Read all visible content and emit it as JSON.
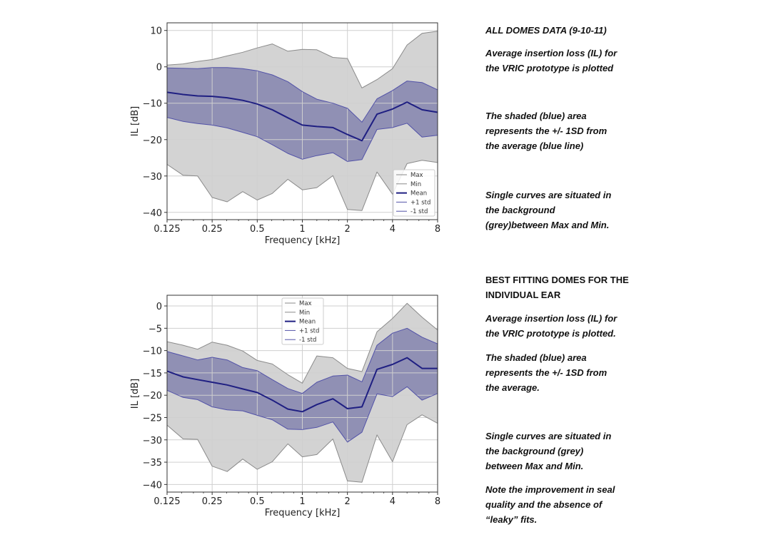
{
  "top_panel": {
    "heading": "ALL DOMES DATA (9-10-11)",
    "paragraphs": [
      [
        "Average insertion loss (IL) for",
        "the VRIC prototype is plotted"
      ],
      [
        "The shaded (blue) area",
        "represents the +/- 1SD from",
        "the average (blue line)"
      ],
      [
        "Single curves are situated in",
        "the background",
        "(grey)between Max and Min."
      ]
    ]
  },
  "bottom_panel": {
    "heading": [
      "BEST FITTING DOMES FOR THE",
      "INDIVIDUAL EAR"
    ],
    "paragraphs": [
      [
        "Average insertion loss (IL) for",
        "the VRIC prototype is plotted."
      ],
      [
        "The shaded (blue) area",
        "represents the +/- 1SD from",
        "the average."
      ],
      [
        "Single curves are situated in",
        "the background (grey)",
        "between Max and Min."
      ],
      [
        "Note the improvement in seal",
        "quality and the absence of",
        "“leaky” fits."
      ]
    ]
  },
  "colors": {
    "minmax_fill": "#d3d3d3",
    "minmax_line": "#8a8a8a",
    "std_fill": "#9090b4",
    "mean_line": "#1f1f82",
    "std_line": "#5252a8",
    "grid": "#cfcfcf"
  },
  "chart_data": [
    {
      "type": "area",
      "xlabel": "Frequency [kHz]",
      "ylabel": "IL [dB]",
      "xscale": "log2",
      "xlim": [
        0.125,
        8
      ],
      "ylim": [
        -42,
        12.1
      ],
      "xticks": [
        0.125,
        0.25,
        0.5,
        1,
        2,
        4,
        8
      ],
      "xtick_labels": [
        "0.125",
        "0.25",
        "0.5",
        "1",
        "2",
        "4",
        "8"
      ],
      "yticks": [
        10,
        0,
        -10,
        -20,
        -30,
        -40
      ],
      "ytick_labels": [
        "10",
        "0",
        "−10",
        "−20",
        "−30",
        "−40"
      ],
      "grid": true,
      "legend": "lower-right",
      "x": [
        0.125,
        0.16,
        0.2,
        0.25,
        0.315,
        0.4,
        0.5,
        0.63,
        0.8,
        1,
        1.25,
        1.6,
        2,
        2.5,
        3.15,
        4,
        5,
        6.3,
        8
      ],
      "series": [
        {
          "name": "Max",
          "values": [
            0.5,
            0.8,
            1.5,
            2,
            3,
            4,
            5.2,
            6.3,
            4.3,
            4.8,
            4.7,
            2.6,
            2.3,
            -5.8,
            -3.5,
            -0.5,
            6,
            9.2,
            9.8
          ]
        },
        {
          "name": "Min",
          "values": [
            -26.8,
            -29.8,
            -30,
            -35.9,
            -37.1,
            -34.3,
            -36.6,
            -34.8,
            -30.9,
            -33.8,
            -33.2,
            -29.9,
            -39.2,
            -39.5,
            -28.9,
            -35,
            -26.6,
            -25.7,
            -26.3
          ]
        },
        {
          "name": "Mean",
          "values": [
            -7,
            -7.6,
            -8,
            -8.1,
            -8.5,
            -9.2,
            -10.2,
            -11.8,
            -14,
            -16,
            -16.4,
            -16.7,
            -18.6,
            -20.3,
            -13,
            -11.6,
            -9.7,
            -11.8,
            -12.5
          ]
        },
        {
          "name": "+1 std",
          "values": [
            -0.3,
            -0.4,
            -0.5,
            -0.2,
            -0.2,
            -0.5,
            -1.1,
            -2.2,
            -4.1,
            -6.8,
            -8.9,
            -10,
            -11.4,
            -15.2,
            -8.8,
            -6.5,
            -3.9,
            -4.3,
            -6.3
          ]
        },
        {
          "name": "-1 std",
          "values": [
            -13.9,
            -15,
            -15.6,
            -16,
            -16.8,
            -18,
            -19.2,
            -21.4,
            -23.8,
            -25.4,
            -24.4,
            -23.6,
            -26,
            -25.5,
            -17.2,
            -16.7,
            -15.5,
            -19.3,
            -18.8
          ]
        }
      ]
    },
    {
      "type": "area",
      "xlabel": "Frequency [kHz]",
      "ylabel": "IL [dB]",
      "xscale": "log2",
      "xlim": [
        0.125,
        8
      ],
      "ylim": [
        -41.7,
        2.4
      ],
      "xticks": [
        0.125,
        0.25,
        0.5,
        1,
        2,
        4,
        8
      ],
      "xtick_labels": [
        "0.125",
        "0.25",
        "0.5",
        "1",
        "2",
        "4",
        "8"
      ],
      "yticks": [
        0,
        -5,
        -10,
        -15,
        -20,
        -25,
        -30,
        -35,
        -40
      ],
      "ytick_labels": [
        "0",
        "−5",
        "−10",
        "−15",
        "−20",
        "−25",
        "−30",
        "−35",
        "−40"
      ],
      "grid": true,
      "legend": "upper-center",
      "x": [
        0.125,
        0.16,
        0.2,
        0.25,
        0.315,
        0.4,
        0.5,
        0.63,
        0.8,
        1,
        1.25,
        1.6,
        2,
        2.5,
        3.15,
        4,
        5,
        6.3,
        8
      ],
      "series": [
        {
          "name": "Max",
          "values": [
            -8,
            -8.8,
            -9.7,
            -8.1,
            -8.8,
            -10.1,
            -12.2,
            -13,
            -15.4,
            -17.3,
            -11.2,
            -11.6,
            -14,
            -14.7,
            -5.8,
            -2.8,
            0.6,
            -2.5,
            -5.4
          ]
        },
        {
          "name": "Min",
          "values": [
            -26.7,
            -29.8,
            -29.9,
            -35.9,
            -37.1,
            -34.3,
            -36.6,
            -34.9,
            -30.9,
            -33.8,
            -33.3,
            -29.8,
            -39.2,
            -39.5,
            -28.9,
            -34.9,
            -26.6,
            -24.4,
            -26.3
          ]
        },
        {
          "name": "Mean",
          "values": [
            -14.6,
            -15.9,
            -16.5,
            -17.1,
            -17.7,
            -18.6,
            -19.4,
            -21.1,
            -23.1,
            -23.7,
            -22.1,
            -20.8,
            -23,
            -22.6,
            -14.2,
            -13.1,
            -11.6,
            -14,
            -14
          ]
        },
        {
          "name": "+1 std",
          "values": [
            -10.2,
            -11.2,
            -12.1,
            -11.5,
            -12.1,
            -13.8,
            -14.5,
            -16.5,
            -18.5,
            -19.6,
            -17.1,
            -15.7,
            -15.5,
            -17,
            -8.8,
            -6.1,
            -5,
            -7,
            -8.5
          ]
        },
        {
          "name": "-1 std",
          "values": [
            -18.9,
            -20.5,
            -21,
            -22.6,
            -23.3,
            -23.5,
            -24.5,
            -25.5,
            -27.6,
            -27.7,
            -27.2,
            -26,
            -30.5,
            -28.3,
            -19.7,
            -20.3,
            -18.1,
            -21.1,
            -19.6
          ]
        }
      ]
    }
  ]
}
